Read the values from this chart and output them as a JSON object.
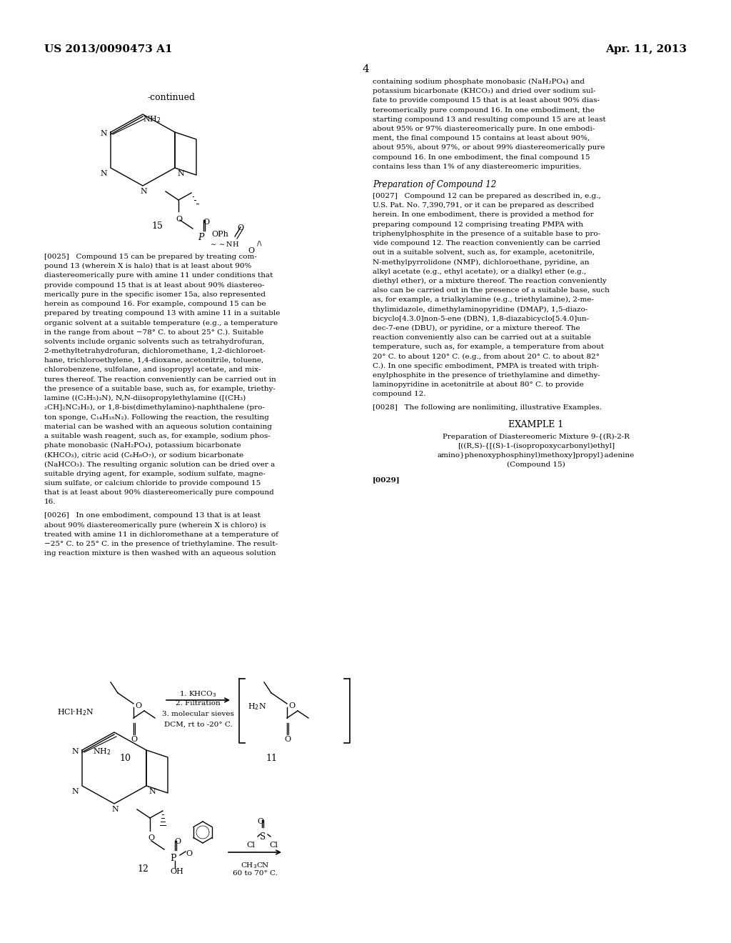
{
  "bg_color": "#ffffff",
  "header_left": "US 2013/0090473 A1",
  "header_right": "Apr. 11, 2013",
  "page_number": "4",
  "continued_label": "-continued",
  "compound15_label": "15",
  "compound10_label": "10",
  "compound11_label": "11",
  "compound12_label": "12",
  "example1_title": "EXAMPLE 1",
  "example1_subtitle_line1": "Preparation of Diastereomeric Mixture 9-{(R)-2-R",
  "example1_subtitle_line2": "[((R,S)-{[(S)-1-(isopropoxycarbonyl)ethyl]",
  "example1_subtitle_line3": "amino}phenoxyphosphinyl)methoxy]propyl}adenine",
  "example1_subtitle_line4": "(Compound 15)",
  "para0029": "[0029]",
  "right_col_text": [
    "containing sodium phosphate monobasic (NaH₂PO₄) and",
    "potassium bicarbonate (KHCO₃) and dried over sodium sul-",
    "fate to provide compound 15 that is at least about 90% dias-",
    "tereomerically pure compound 16. In one embodiment, the",
    "starting compound 13 and resulting compound 15 are at least",
    "about 95% or 97% diastereomerically pure. In one embodi-",
    "ment, the final compound 15 contains at least about 90%,",
    "about 95%, about 97%, or about 99% diastereomerically pure",
    "compound 16. In one embodiment, the final compound 15",
    "contains less than 1% of any diastereomeric impurities."
  ],
  "prep_compound12_heading": "Preparation of Compound 12",
  "para0027_text": [
    "[0027]   Compound 12 can be prepared as described in, e.g.,",
    "U.S. Pat. No. 7,390,791, or it can be prepared as described",
    "herein. In one embodiment, there is provided a method for",
    "preparing compound 12 comprising treating PMPA with",
    "triphenylphosphite in the presence of a suitable base to pro-",
    "vide compound 12. The reaction conveniently can be carried",
    "out in a suitable solvent, such as, for example, acetonitrile,",
    "N-methylpyrrolidone (NMP), dichloroethane, pyridine, an",
    "alkyl acetate (e.g., ethyl acetate), or a dialkyl ether (e.g.,",
    "diethyl ether), or a mixture thereof. The reaction conveniently",
    "also can be carried out in the presence of a suitable base, such",
    "as, for example, a trialkylamine (e.g., triethylamine), 2-me-",
    "thylimidazole, dimethylaminopyridine (DMAP), 1,5-diazo-",
    "bicyclo[4.3.0]non-5-ene (DBN), 1,8-diazabicyclo[5.4.0]un-",
    "dec-7-ene (DBU), or pyridine, or a mixture thereof. The",
    "reaction conveniently also can be carried out at a suitable",
    "temperature, such as, for example, a temperature from about",
    "20° C. to about 120° C. (e.g., from about 20° C. to about 82°",
    "C.). In one specific embodiment, PMPA is treated with triph-",
    "enylphosphite in the presence of triethylamine and dimethy-",
    "laminopyridine in acetonitrile at about 80° C. to provide",
    "compound 12."
  ],
  "para0028_text": "[0028]   The following are nonlimiting, illustrative Examples.",
  "left_col_para0025": [
    "[0025]   Compound 15 can be prepared by treating com-",
    "pound 13 (wherein X is halo) that is at least about 90%",
    "diastereomerically pure with amine 11 under conditions that",
    "provide compound 15 that is at least about 90% diastereo-",
    "merically pure in the specific isomer 15a, also represented",
    "herein as compound 16. For example, compound 15 can be",
    "prepared by treating compound 13 with amine 11 in a suitable",
    "organic solvent at a suitable temperature (e.g., a temperature",
    "in the range from about −78° C. to about 25° C.). Suitable",
    "solvents include organic solvents such as tetrahydrofuran,",
    "2-methyltetrahydrofuran, dichloromethane, 1,2-dichloroet-",
    "hane, trichloroethylene, 1,4-dioxane, acetonitrile, toluene,",
    "chlorobenzene, sulfolane, and isopropyl acetate, and mix-",
    "tures thereof. The reaction conveniently can be carried out in",
    "the presence of a suitable base, such as, for example, triethy-",
    "lamine ((C₂H₅)₃N), N,N-diisopropylethylamine ([(CH₃)",
    "₂CH]₂NC₂H₅), or 1,8-bis(dimethylamino)-naphthalene (pro-",
    "ton sponge, C₁₄H₁₈N₂). Following the reaction, the resulting",
    "material can be washed with an aqueous solution containing",
    "a suitable wash reagent, such as, for example, sodium phos-",
    "phate monobasic (NaH₂PO₄), potassium bicarbonate",
    "(KHCO₃), citric acid (C₆H₈O₇), or sodium bicarbonate",
    "(NaHCO₃). The resulting organic solution can be dried over a",
    "suitable drying agent, for example, sodium sulfate, magne-",
    "sium sulfate, or calcium chloride to provide compound 15",
    "that is at least about 90% diastereomerically pure compound",
    "16."
  ],
  "left_col_para0026": [
    "[0026]   In one embodiment, compound 13 that is at least",
    "about 90% diastereomerically pure (wherein X is chloro) is",
    "treated with amine 11 in dichloromethane at a temperature of",
    "−25° C. to 25° C. in the presence of triethylamine. The result-",
    "ing reaction mixture is then washed with an aqueous solution"
  ]
}
